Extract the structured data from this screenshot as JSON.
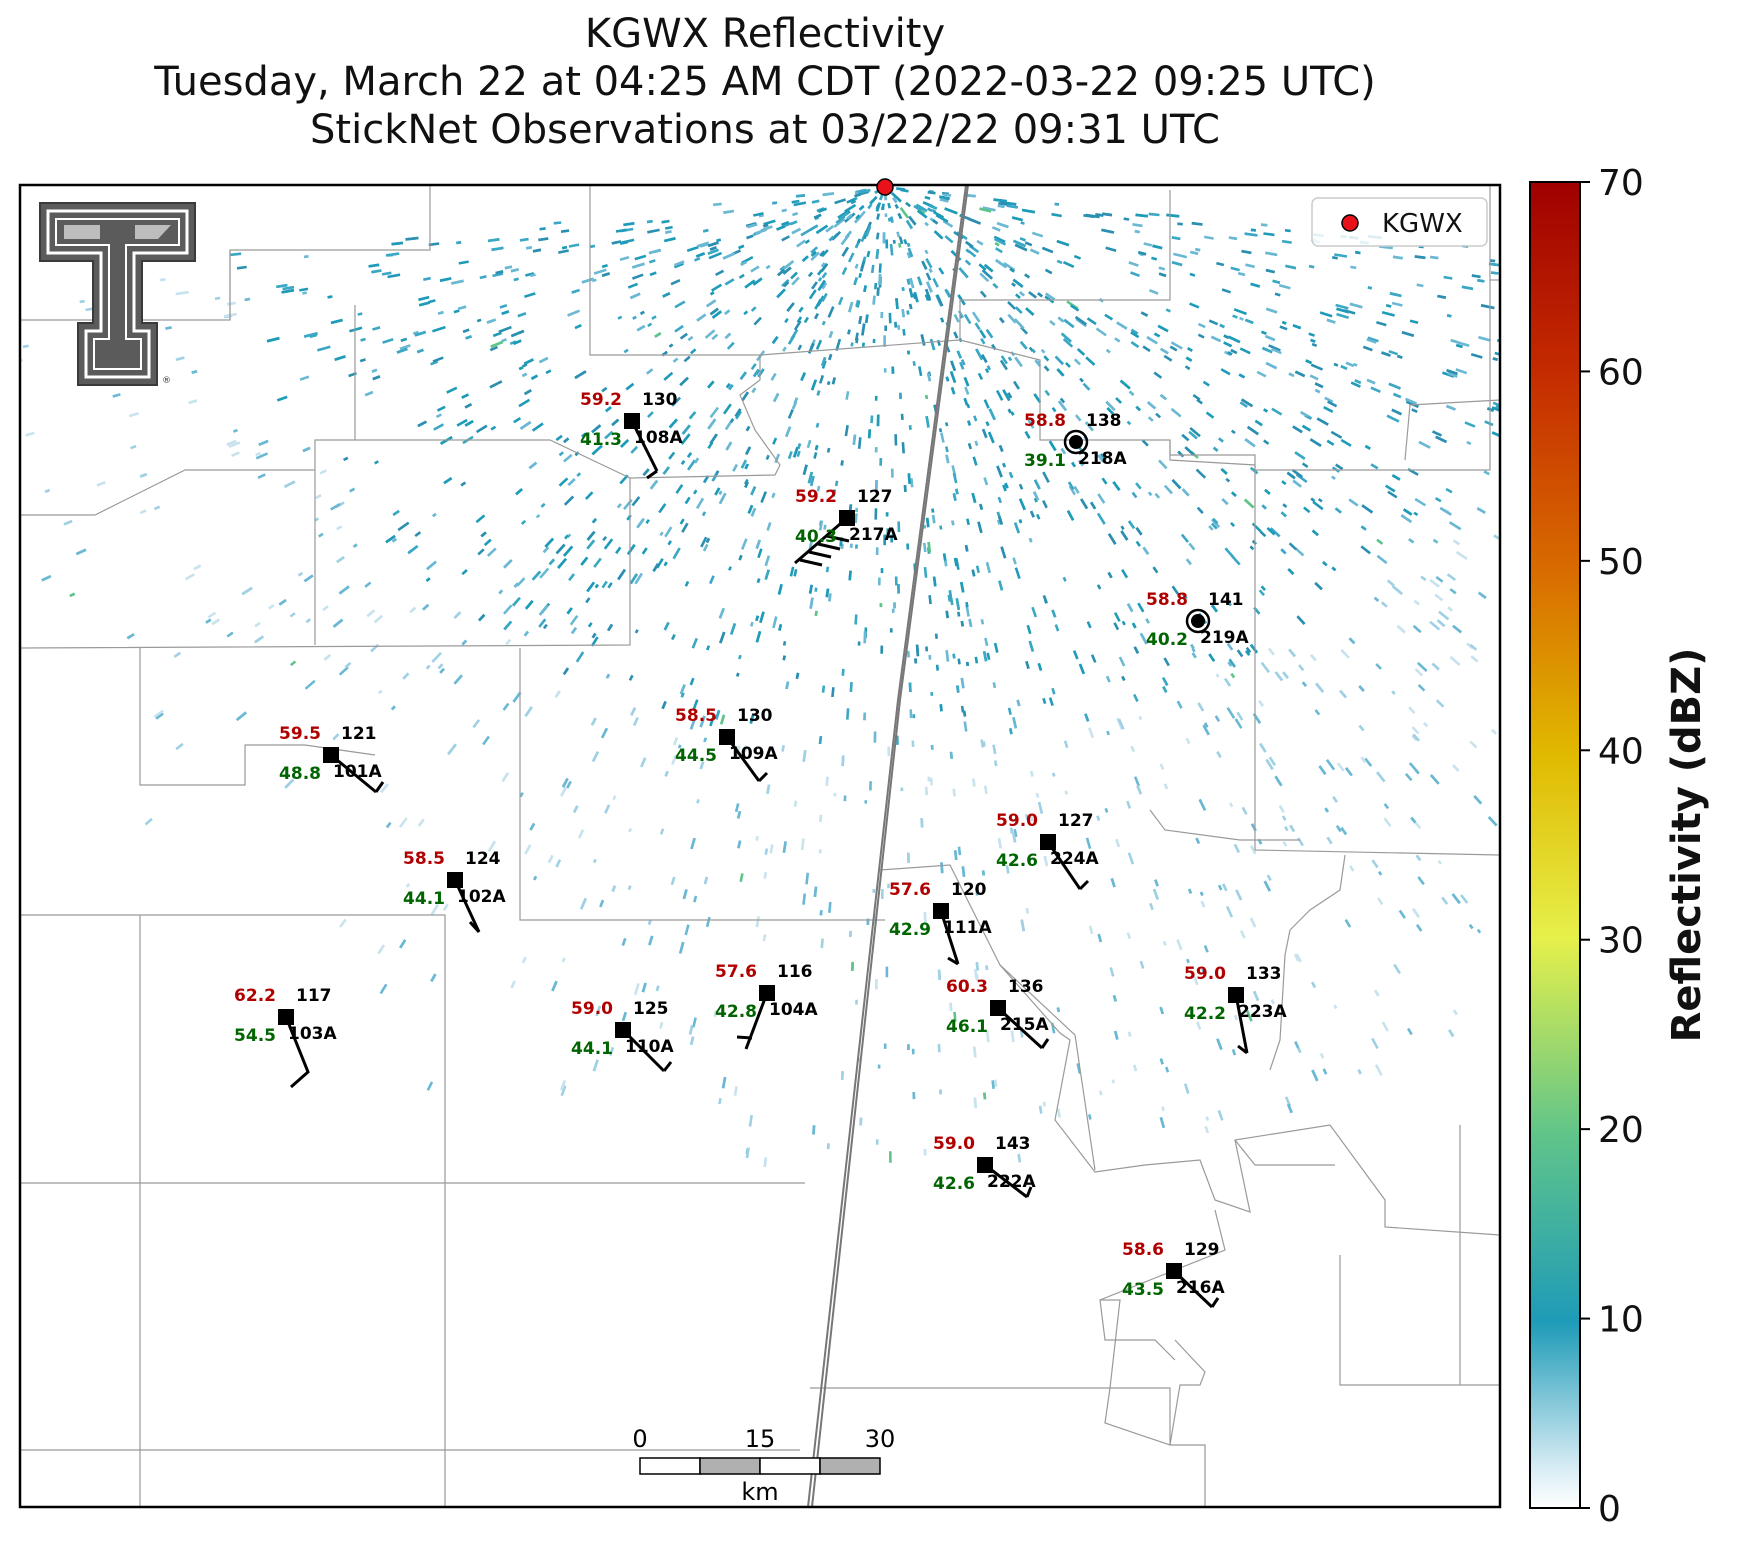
{
  "title": {
    "line1": "KGWX Reflectivity",
    "line2": "Tuesday, March 22 at 04:25 AM CDT (2022-03-22 09:25 UTC)",
    "line3": "StickNet Observations at 03/22/22 09:31 UTC"
  },
  "legend": {
    "label": "KGWX",
    "marker_color": "#e8121b"
  },
  "colorbar": {
    "label": "Reflectivity (dBZ)",
    "ticks": [
      "0",
      "10",
      "20",
      "30",
      "40",
      "50",
      "60",
      "70"
    ],
    "range": [
      0,
      70
    ],
    "colors": [
      "#ffffff",
      "#1e9bb8",
      "#5fc48a",
      "#e6f04a",
      "#e0b800",
      "#d86a00",
      "#c42a00",
      "#a00000"
    ]
  },
  "scalebar": {
    "ticks": [
      "0",
      "15",
      "30"
    ],
    "unit": "km"
  },
  "logo": {
    "name": "texas-tech-double-t-logo"
  },
  "stations": [
    {
      "id": "108A",
      "temp": "59.2",
      "dew": "41.3",
      "wind": "130"
    },
    {
      "id": "217A",
      "temp": "59.2",
      "dew": "40.3",
      "wind": "127"
    },
    {
      "id": "218A",
      "temp": "58.8",
      "dew": "39.1",
      "wind": "138"
    },
    {
      "id": "219A",
      "temp": "58.8",
      "dew": "40.2",
      "wind": "141"
    },
    {
      "id": "101A",
      "temp": "59.5",
      "dew": "48.8",
      "wind": "121"
    },
    {
      "id": "109A",
      "temp": "58.5",
      "dew": "44.5",
      "wind": "130"
    },
    {
      "id": "224A",
      "temp": "59.0",
      "dew": "42.6",
      "wind": "127"
    },
    {
      "id": "102A",
      "temp": "58.5",
      "dew": "44.1",
      "wind": "124"
    },
    {
      "id": "111A",
      "temp": "57.6",
      "dew": "42.9",
      "wind": "120"
    },
    {
      "id": "103A",
      "temp": "62.2",
      "dew": "54.5",
      "wind": "117"
    },
    {
      "id": "110A",
      "temp": "59.0",
      "dew": "44.1",
      "wind": "125"
    },
    {
      "id": "104A",
      "temp": "57.6",
      "dew": "42.8",
      "wind": "116"
    },
    {
      "id": "215A",
      "temp": "60.3",
      "dew": "46.1",
      "wind": "136"
    },
    {
      "id": "223A",
      "temp": "59.0",
      "dew": "42.2",
      "wind": "133"
    },
    {
      "id": "222A",
      "temp": "59.0",
      "dew": "42.6",
      "wind": "143"
    },
    {
      "id": "216A",
      "temp": "58.6",
      "dew": "43.5",
      "wind": "129"
    }
  ],
  "colors": {
    "temp": "#b00000",
    "dew": "#006400",
    "text": "#000000",
    "county_lines": "#9a9a9a"
  }
}
